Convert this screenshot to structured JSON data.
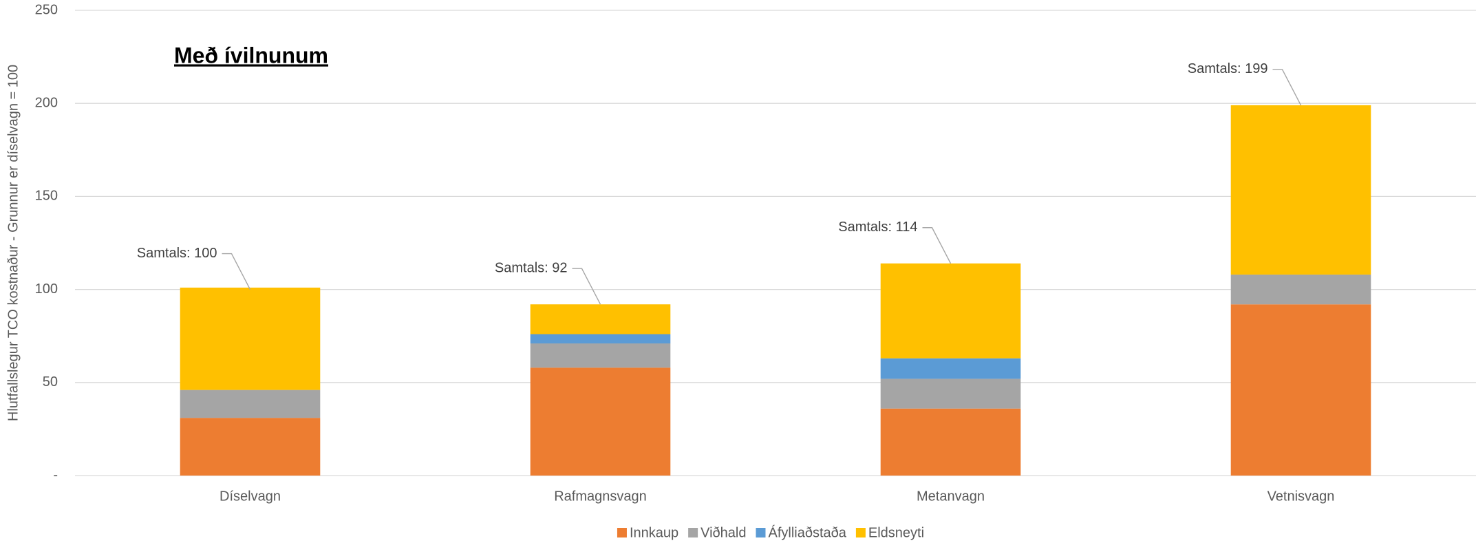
{
  "chart_data": {
    "type": "stacked_bar",
    "subtitle": "Með ívilnunum",
    "y_label": "Hlutfallslegur TCO kostnaður - Grunnur er díselvagn = 100",
    "categories": [
      "Díselvagn",
      "Rafmagnsvagn",
      "Metanvagn",
      "Vetnisvagn"
    ],
    "series": [
      {
        "name": "Innkaup",
        "color": "#ed7d31",
        "values": [
          31,
          58,
          36,
          92
        ]
      },
      {
        "name": "Viðhald",
        "color": "#a5a5a5",
        "values": [
          15,
          13,
          16,
          16
        ]
      },
      {
        "name": "Áfylliaðstaða",
        "color": "#5b9bd5",
        "values": [
          0,
          5,
          11,
          0
        ]
      },
      {
        "name": "Eldsneyti",
        "color": "#ffc000",
        "values": [
          55,
          16,
          51,
          91
        ]
      }
    ],
    "totals": {
      "values": [
        100,
        92,
        114,
        199
      ],
      "value_labels": [
        "Samtals: 100",
        "Samtals: 92",
        "Samtals: 114",
        "Samtals: 199"
      ]
    },
    "ylim": [
      0,
      250
    ],
    "yticks": [
      {
        "value": 0,
        "label": "-"
      },
      50,
      100,
      150,
      200,
      250
    ],
    "grid": true,
    "legend": "bottom"
  }
}
